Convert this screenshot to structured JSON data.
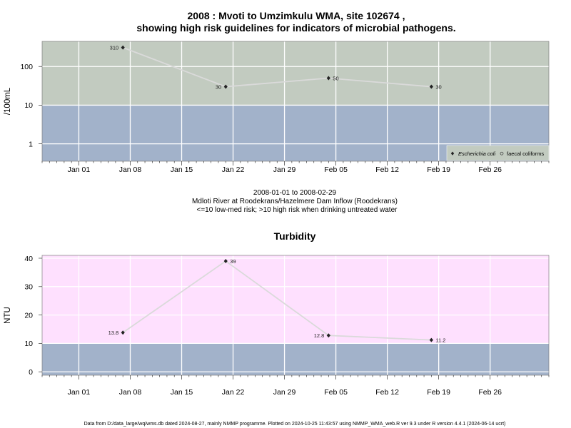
{
  "header": {
    "title_line1": "2008 : Mvoti to Umzimkulu WMA, site 102674 ,",
    "title_line2": "showing high risk guidelines for indicators of microbial pathogens."
  },
  "caption": {
    "date_range": "2008-01-01 to 2008-02-29",
    "site": "Mdloti River at Roodekrans/Hazelmere Dam Inflow (Roodekrans)",
    "guideline": "<=10 low-med risk; >10 high risk when drinking untreated water"
  },
  "footer": {
    "text": "Data from D:/data_large/wq/wms.db dated 2024-08-27, mainly NMMP programme. Plotted on 2024-10-25 11:43:57 using NMMP_WMA_web.R ver 9.3 under R version 4.4.1 (2024-06-14 ucrt)"
  },
  "colors": {
    "high_risk_micro": "#c2cbc0",
    "low_risk": "#a2b2ca",
    "high_risk_turb": "#fee0fe",
    "grid": "#ffffff",
    "line": "#dadada",
    "marker": "#222222"
  },
  "chart_data": [
    {
      "type": "scatter",
      "title": "",
      "ylabel": "/100mL",
      "xlabel": "",
      "yscale": "log",
      "xlim": [
        "2007-12-27",
        "2008-03-05"
      ],
      "ylim_log10": [
        -0.45,
        2.65
      ],
      "yticks": [
        1,
        10,
        100
      ],
      "ytick_labels": [
        "1",
        "10",
        "100"
      ],
      "xticks": [
        "2008-01-01",
        "2008-01-08",
        "2008-01-15",
        "2008-01-22",
        "2008-01-29",
        "2008-02-05",
        "2008-02-12",
        "2008-02-19",
        "2008-02-26"
      ],
      "xtick_labels": [
        "Jan 01",
        "Jan 08",
        "Jan 15",
        "Jan 22",
        "Jan 29",
        "Feb 05",
        "Feb 12",
        "Feb 19",
        "Feb 26"
      ],
      "threshold": 10,
      "grid": true,
      "legend_position": "bottom-right",
      "series": [
        {
          "name": "Escherichia coli",
          "marker": "diamond",
          "points": [
            {
              "x": "2008-01-07",
              "y": 310,
              "label": "310",
              "label_side": "left"
            },
            {
              "x": "2008-01-21",
              "y": 30,
              "label": "30",
              "label_side": "left"
            },
            {
              "x": "2008-02-04",
              "y": 50,
              "label": "50",
              "label_side": "right"
            },
            {
              "x": "2008-02-18",
              "y": 30,
              "label": "30",
              "label_side": "right"
            }
          ]
        },
        {
          "name": "faecal coliforms",
          "marker": "circle",
          "points": []
        }
      ]
    },
    {
      "type": "scatter",
      "title": "Turbidity",
      "ylabel": "NTU",
      "xlabel": "",
      "yscale": "linear",
      "xlim": [
        "2007-12-27",
        "2008-03-05"
      ],
      "ylim": [
        -1.2,
        41
      ],
      "yticks": [
        0,
        10,
        20,
        30,
        40
      ],
      "ytick_labels": [
        "0",
        "10",
        "20",
        "30",
        "40"
      ],
      "xticks": [
        "2008-01-01",
        "2008-01-08",
        "2008-01-15",
        "2008-01-22",
        "2008-01-29",
        "2008-02-05",
        "2008-02-12",
        "2008-02-19",
        "2008-02-26"
      ],
      "xtick_labels": [
        "Jan 01",
        "Jan 08",
        "Jan 15",
        "Jan 22",
        "Jan 29",
        "Feb 05",
        "Feb 12",
        "Feb 19",
        "Feb 26"
      ],
      "threshold": 10,
      "grid": true,
      "series": [
        {
          "name": "",
          "marker": "diamond",
          "points": [
            {
              "x": "2008-01-07",
              "y": 13.8,
              "label": "13.8",
              "label_side": "left"
            },
            {
              "x": "2008-01-21",
              "y": 39,
              "label": "39",
              "label_side": "right"
            },
            {
              "x": "2008-02-04",
              "y": 12.8,
              "label": "12.8",
              "label_side": "left"
            },
            {
              "x": "2008-02-18",
              "y": 11.2,
              "label": "11.2",
              "label_side": "right"
            }
          ]
        }
      ]
    }
  ]
}
